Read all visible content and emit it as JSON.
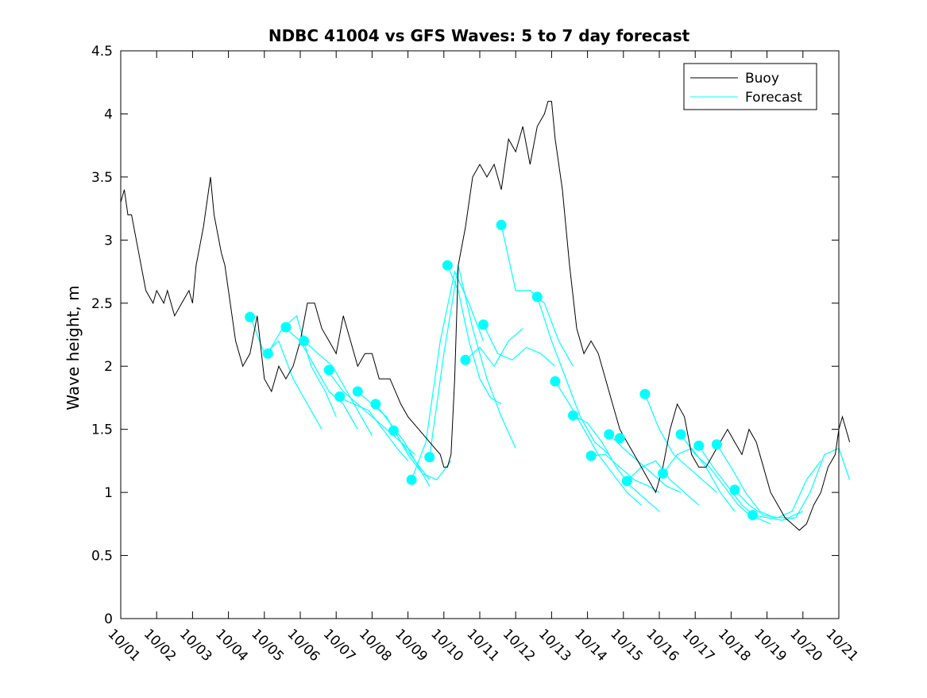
{
  "chart_data": {
    "type": "line",
    "title": "NDBC 41004 vs GFS Waves: 5 to 7 day forecast",
    "xlabel": "",
    "ylabel": "Wave height, m",
    "xlim": [
      0,
      20
    ],
    "ylim": [
      0,
      4.5
    ],
    "x_tick_labels": [
      "10/01",
      "10/02",
      "10/03",
      "10/04",
      "10/05",
      "10/06",
      "10/07",
      "10/08",
      "10/09",
      "10/10",
      "10/11",
      "10/12",
      "10/13",
      "10/14",
      "10/15",
      "10/16",
      "10/17",
      "10/18",
      "10/19",
      "10/20",
      "10/21"
    ],
    "y_ticks": [
      0,
      0.5,
      1,
      1.5,
      2,
      2.5,
      3,
      3.5,
      4,
      4.5
    ],
    "y_tick_labels": [
      "0",
      "0.5",
      "1",
      "1.5",
      "2",
      "2.5",
      "3",
      "3.5",
      "4",
      "4.5"
    ],
    "grid": false,
    "legend": {
      "position": "top-right",
      "entries": [
        "Buoy",
        "Forecast"
      ]
    },
    "colors": {
      "buoy": "#000000",
      "forecast": "#00ffff"
    },
    "buoy": {
      "name": "Buoy",
      "x": [
        0,
        0.1,
        0.2,
        0.3,
        0.5,
        0.7,
        0.9,
        1.0,
        1.2,
        1.3,
        1.5,
        1.7,
        1.9,
        2.0,
        2.1,
        2.3,
        2.5,
        2.6,
        2.8,
        2.9,
        3.0,
        3.2,
        3.4,
        3.6,
        3.8,
        4.0,
        4.2,
        4.4,
        4.6,
        4.8,
        5.0,
        5.2,
        5.4,
        5.6,
        5.8,
        6.0,
        6.2,
        6.4,
        6.6,
        6.8,
        7.0,
        7.2,
        7.5,
        7.8,
        8.0,
        8.3,
        8.6,
        8.9,
        9.0,
        9.1,
        9.2,
        9.3,
        9.4,
        9.6,
        9.8,
        10.0,
        10.2,
        10.4,
        10.6,
        10.8,
        11.0,
        11.2,
        11.4,
        11.6,
        11.8,
        11.9,
        12.0,
        12.1,
        12.3,
        12.5,
        12.7,
        12.9,
        13.1,
        13.3,
        13.5,
        13.7,
        13.9,
        14.1,
        14.3,
        14.5,
        14.7,
        14.9,
        15.1,
        15.3,
        15.5,
        15.7,
        15.9,
        16.1,
        16.3,
        16.5,
        16.7,
        16.9,
        17.1,
        17.3,
        17.5,
        17.7,
        17.9,
        18.1,
        18.3,
        18.5,
        18.7,
        18.9,
        19.1,
        19.3,
        19.5,
        19.7,
        19.9,
        20.0,
        20.1,
        20.3
      ],
      "y": [
        3.3,
        3.4,
        3.2,
        3.2,
        2.9,
        2.6,
        2.5,
        2.6,
        2.5,
        2.6,
        2.4,
        2.5,
        2.6,
        2.5,
        2.8,
        3.1,
        3.5,
        3.2,
        2.9,
        2.8,
        2.6,
        2.2,
        2.0,
        2.1,
        2.4,
        1.9,
        1.8,
        2.0,
        1.9,
        2.0,
        2.2,
        2.5,
        2.5,
        2.3,
        2.2,
        2.1,
        2.4,
        2.2,
        2.0,
        2.1,
        2.1,
        1.9,
        1.9,
        1.7,
        1.6,
        1.5,
        1.4,
        1.3,
        1.2,
        1.2,
        1.3,
        1.9,
        2.8,
        3.1,
        3.5,
        3.6,
        3.5,
        3.6,
        3.4,
        3.8,
        3.7,
        3.9,
        3.6,
        3.9,
        4.0,
        4.1,
        4.1,
        3.8,
        3.4,
        2.8,
        2.3,
        2.1,
        2.2,
        2.1,
        1.9,
        1.7,
        1.5,
        1.4,
        1.3,
        1.2,
        1.1,
        1.0,
        1.2,
        1.5,
        1.7,
        1.6,
        1.3,
        1.2,
        1.2,
        1.3,
        1.4,
        1.5,
        1.4,
        1.3,
        1.5,
        1.4,
        1.2,
        1.0,
        0.9,
        0.8,
        0.75,
        0.7,
        0.75,
        0.9,
        1.0,
        1.2,
        1.3,
        1.5,
        1.6,
        1.4
      ]
    },
    "forecast_segments": [
      {
        "x": [
          3.6,
          4.0,
          4.4,
          4.8,
          5.2,
          5.6
        ],
        "y": [
          2.4,
          2.1,
          2.2,
          1.9,
          1.7,
          1.5
        ]
      },
      {
        "x": [
          4.1,
          4.5,
          4.9,
          5.3,
          5.7,
          6.0
        ],
        "y": [
          2.1,
          2.3,
          2.4,
          2.0,
          1.8,
          1.6
        ]
      },
      {
        "x": [
          4.6,
          5.0,
          5.4,
          5.8,
          6.2,
          6.6
        ],
        "y": [
          2.3,
          2.2,
          2.0,
          1.8,
          1.7,
          1.5
        ]
      },
      {
        "x": [
          5.1,
          5.5,
          5.9,
          6.3,
          6.7,
          7.0
        ],
        "y": [
          2.2,
          2.1,
          2.0,
          1.8,
          1.6,
          1.45
        ]
      },
      {
        "x": [
          5.8,
          6.2,
          6.6,
          7.0,
          7.4,
          7.8,
          8.2
        ],
        "y": [
          1.95,
          1.8,
          1.7,
          1.6,
          1.5,
          1.4,
          1.3
        ]
      },
      {
        "x": [
          6.1,
          6.5,
          6.9,
          7.3,
          7.7,
          8.0
        ],
        "y": [
          1.75,
          1.7,
          1.65,
          1.5,
          1.35,
          1.25
        ]
      },
      {
        "x": [
          6.6,
          7.0,
          7.4,
          7.8,
          8.2,
          8.6
        ],
        "y": [
          1.8,
          1.7,
          1.6,
          1.4,
          1.25,
          1.1
        ]
      },
      {
        "x": [
          7.1,
          7.5,
          7.9,
          8.3,
          8.6
        ],
        "y": [
          1.7,
          1.55,
          1.4,
          1.2,
          1.05
        ]
      },
      {
        "x": [
          7.6,
          8.0,
          8.4,
          8.8,
          9.2
        ],
        "y": [
          1.5,
          1.3,
          1.15,
          1.1,
          1.25
        ]
      },
      {
        "x": [
          8.1,
          8.5,
          8.9,
          9.3,
          9.7,
          10.1
        ],
        "y": [
          1.1,
          1.4,
          2.2,
          2.75,
          2.5,
          2.2
        ]
      },
      {
        "x": [
          8.6,
          9.0,
          9.4,
          9.8,
          10.2,
          10.6,
          11.0
        ],
        "y": [
          1.28,
          2.1,
          2.8,
          2.3,
          1.9,
          1.6,
          1.35
        ]
      },
      {
        "x": [
          9.1,
          9.4,
          9.7,
          10.0,
          10.3,
          10.6
        ],
        "y": [
          2.8,
          2.6,
          2.2,
          1.9,
          1.75,
          1.7
        ]
      },
      {
        "x": [
          9.6,
          10.0,
          10.4,
          10.8,
          11.2
        ],
        "y": [
          2.05,
          2.15,
          2.0,
          2.2,
          2.3
        ]
      },
      {
        "x": [
          10.1,
          10.5,
          10.9,
          11.3,
          11.7,
          12.1
        ],
        "y": [
          2.33,
          2.1,
          2.05,
          2.15,
          2.1,
          2.0
        ]
      },
      {
        "x": [
          10.6,
          11.0,
          11.4,
          11.8,
          12.2,
          12.6
        ],
        "y": [
          3.12,
          2.6,
          2.6,
          2.5,
          2.2,
          2.0
        ]
      },
      {
        "x": [
          11.6,
          12.0,
          12.4,
          12.8,
          13.2,
          13.6
        ],
        "y": [
          2.55,
          2.2,
          1.9,
          1.6,
          1.4,
          1.3
        ]
      },
      {
        "x": [
          12.1,
          12.5,
          12.9,
          13.3,
          13.7,
          14.1,
          14.5
        ],
        "y": [
          1.88,
          1.7,
          1.5,
          1.3,
          1.15,
          1.0,
          0.9
        ]
      },
      {
        "x": [
          12.6,
          13.0,
          13.4,
          13.8,
          14.2,
          14.6,
          15.0
        ],
        "y": [
          1.61,
          1.55,
          1.4,
          1.2,
          1.05,
          0.95,
          0.85
        ]
      },
      {
        "x": [
          13.1,
          13.5,
          13.9,
          14.3,
          14.7,
          15.0
        ],
        "y": [
          1.29,
          1.3,
          1.2,
          1.1,
          1.05,
          1.0
        ]
      },
      {
        "x": [
          13.6,
          14.0,
          14.4,
          14.8,
          15.2,
          15.6
        ],
        "y": [
          1.46,
          1.35,
          1.25,
          1.15,
          1.05,
          1.0
        ]
      },
      {
        "x": [
          14.1,
          14.5,
          14.9,
          15.3,
          15.7,
          16.1
        ],
        "y": [
          1.09,
          1.2,
          1.25,
          1.1,
          1.0,
          0.9
        ]
      },
      {
        "x": [
          14.6,
          15.0,
          15.4,
          15.8,
          16.2,
          16.6
        ],
        "y": [
          1.78,
          1.5,
          1.3,
          1.2,
          1.1,
          1.0
        ]
      },
      {
        "x": [
          15.1,
          15.5,
          15.9,
          16.3,
          16.7,
          17.1
        ],
        "y": [
          1.15,
          1.3,
          1.35,
          1.2,
          1.0,
          0.85
        ]
      },
      {
        "x": [
          15.6,
          16.0,
          16.4,
          16.8,
          17.2,
          17.6
        ],
        "y": [
          1.46,
          1.3,
          1.2,
          1.05,
          0.9,
          0.8
        ]
      },
      {
        "x": [
          16.1,
          16.5,
          16.9,
          17.3,
          17.7,
          18.1
        ],
        "y": [
          1.37,
          1.2,
          1.05,
          0.9,
          0.8,
          0.75
        ]
      },
      {
        "x": [
          16.6,
          17.0,
          17.4,
          17.8,
          18.2,
          18.6,
          19.0
        ],
        "y": [
          1.38,
          1.2,
          1.0,
          0.85,
          0.8,
          0.8,
          0.85
        ]
      },
      {
        "x": [
          17.1,
          17.5,
          17.9,
          18.3,
          18.7,
          19.1,
          19.5
        ],
        "y": [
          1.02,
          0.9,
          0.82,
          0.8,
          0.85,
          1.1,
          1.25
        ]
      },
      {
        "x": [
          17.6,
          18.0,
          18.4,
          18.8,
          19.2,
          19.6,
          20.0,
          20.3
        ],
        "y": [
          0.82,
          0.8,
          0.78,
          0.8,
          1.0,
          1.3,
          1.35,
          1.1
        ]
      }
    ],
    "forecast_markers": {
      "x": [
        3.6,
        4.1,
        4.6,
        5.1,
        5.8,
        6.1,
        6.6,
        7.1,
        7.6,
        8.1,
        8.6,
        9.1,
        9.6,
        10.1,
        10.6,
        11.6,
        12.1,
        12.6,
        13.1,
        13.6,
        13.9,
        14.1,
        14.6,
        15.1,
        15.6,
        16.1,
        16.6,
        17.1,
        17.6
      ],
      "y": [
        2.39,
        2.1,
        2.31,
        2.2,
        1.97,
        1.76,
        1.8,
        1.7,
        1.49,
        1.1,
        1.28,
        2.8,
        2.05,
        2.33,
        3.12,
        2.55,
        1.88,
        1.61,
        1.29,
        1.46,
        1.43,
        1.09,
        1.78,
        1.15,
        1.46,
        1.37,
        1.38,
        1.02,
        0.82
      ]
    }
  }
}
